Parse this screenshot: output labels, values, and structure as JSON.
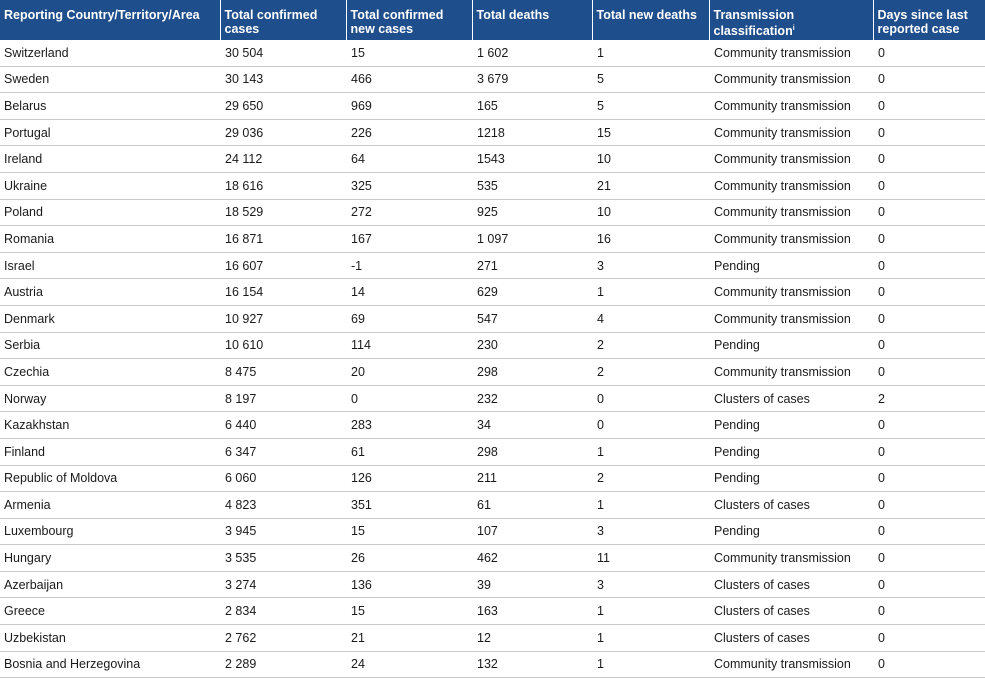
{
  "headers": [
    "Reporting Country/Territory/Area",
    "Total confirmed cases",
    "Total confirmed new cases",
    "Total deaths",
    "Total new deaths",
    "Transmission classification",
    "Days since last reported case"
  ],
  "footnote_mark": "i",
  "rows": [
    [
      "Switzerland",
      "30 504",
      "15",
      "1 602",
      "1",
      "Community transmission",
      "0"
    ],
    [
      "Sweden",
      "30 143",
      "466",
      "3 679",
      "5",
      "Community transmission",
      "0"
    ],
    [
      "Belarus",
      "29 650",
      "969",
      "165",
      "5",
      "Community transmission",
      "0"
    ],
    [
      "Portugal",
      "29 036",
      "226",
      "1218",
      "15",
      "Community transmission",
      "0"
    ],
    [
      "Ireland",
      "24 112",
      "64",
      "1543",
      "10",
      "Community transmission",
      "0"
    ],
    [
      "Ukraine",
      "18 616",
      "325",
      "535",
      "21",
      "Community transmission",
      "0"
    ],
    [
      "Poland",
      "18 529",
      "272",
      "925",
      "10",
      "Community transmission",
      "0"
    ],
    [
      "Romania",
      "16 871",
      "167",
      "1 097",
      "16",
      "Community transmission",
      "0"
    ],
    [
      "Israel",
      "16 607",
      "-1",
      "271",
      "3",
      "Pending",
      "0"
    ],
    [
      "Austria",
      "16 154",
      "14",
      "629",
      "1",
      "Community transmission",
      "0"
    ],
    [
      "Denmark",
      "10 927",
      "69",
      "547",
      "4",
      "Community transmission",
      "0"
    ],
    [
      "Serbia",
      "10 610",
      "114",
      "230",
      "2",
      "Pending",
      "0"
    ],
    [
      "Czechia",
      "8 475",
      "20",
      "298",
      "2",
      "Community transmission",
      "0"
    ],
    [
      "Norway",
      "8 197",
      "0",
      "232",
      "0",
      "Clusters of cases",
      "2"
    ],
    [
      "Kazakhstan",
      "6 440",
      "283",
      "34",
      "0",
      "Pending",
      "0"
    ],
    [
      "Finland",
      "6 347",
      "61",
      "298",
      "1",
      "Pending",
      "0"
    ],
    [
      "Republic of Moldova",
      "6 060",
      "126",
      "211",
      "2",
      "Pending",
      "0"
    ],
    [
      "Armenia",
      "4 823",
      "351",
      "61",
      "1",
      "Clusters of cases",
      "0"
    ],
    [
      "Luxembourg",
      "3 945",
      "15",
      "107",
      "3",
      "Pending",
      "0"
    ],
    [
      "Hungary",
      "3 535",
      "26",
      "462",
      "11",
      "Community transmission",
      "0"
    ],
    [
      "Azerbaijan",
      "3 274",
      "136",
      "39",
      "3",
      "Clusters of cases",
      "0"
    ],
    [
      "Greece",
      "2 834",
      "15",
      "163",
      "1",
      "Clusters of cases",
      "0"
    ],
    [
      "Uzbekistan",
      "2 762",
      "21",
      "12",
      "1",
      "Clusters of cases",
      "0"
    ],
    [
      "Bosnia and Herzegovina",
      "2 289",
      "24",
      "132",
      "1",
      "Community transmission",
      "0"
    ]
  ]
}
